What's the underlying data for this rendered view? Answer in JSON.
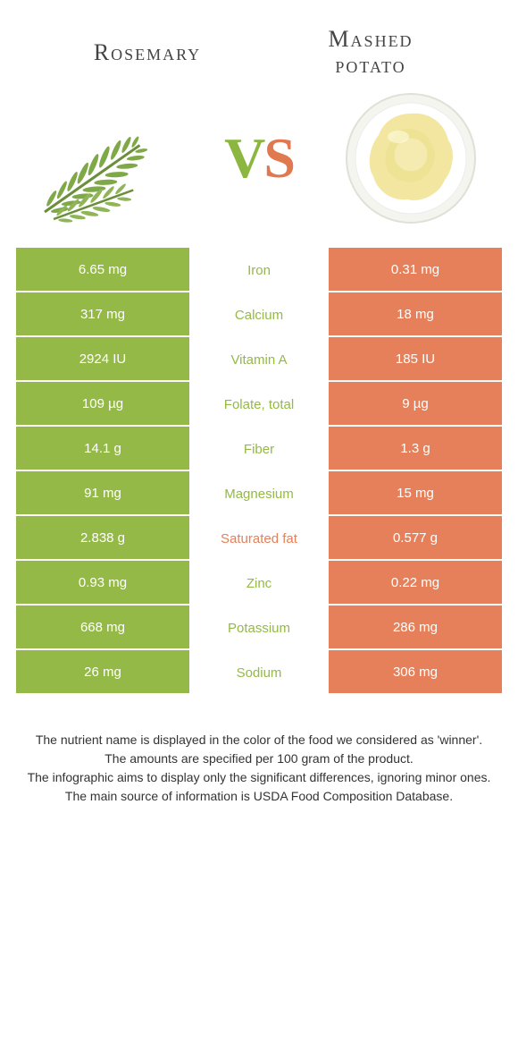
{
  "header": {
    "left_title": "Rosemary",
    "right_title_line1": "Mashed",
    "right_title_line2": "potato",
    "vs_v": "V",
    "vs_s": "S"
  },
  "colors": {
    "left": "#94b947",
    "right": "#e5805a",
    "background": "#ffffff",
    "text_white": "#ffffff"
  },
  "table": {
    "rows": [
      {
        "left": "6.65 mg",
        "label": "Iron",
        "right": "0.31 mg",
        "label_color": "#94b947"
      },
      {
        "left": "317 mg",
        "label": "Calcium",
        "right": "18 mg",
        "label_color": "#94b947"
      },
      {
        "left": "2924 IU",
        "label": "Vitamin A",
        "right": "185 IU",
        "label_color": "#94b947"
      },
      {
        "left": "109 µg",
        "label": "Folate, total",
        "right": "9 µg",
        "label_color": "#94b947"
      },
      {
        "left": "14.1 g",
        "label": "Fiber",
        "right": "1.3 g",
        "label_color": "#94b947"
      },
      {
        "left": "91 mg",
        "label": "Magnesium",
        "right": "15 mg",
        "label_color": "#94b947"
      },
      {
        "left": "2.838 g",
        "label": "Saturated fat",
        "right": "0.577 g",
        "label_color": "#e5805a"
      },
      {
        "left": "0.93 mg",
        "label": "Zinc",
        "right": "0.22 mg",
        "label_color": "#94b947"
      },
      {
        "left": "668 mg",
        "label": "Potassium",
        "right": "286 mg",
        "label_color": "#94b947"
      },
      {
        "left": "26 mg",
        "label": "Sodium",
        "right": "306 mg",
        "label_color": "#94b947"
      }
    ]
  },
  "footer": {
    "line1": "The nutrient name is displayed in the color of the food we considered as 'winner'.",
    "line2": "The amounts are specified per 100 gram of the product.",
    "line3": "The infographic aims to display only the significant differences, ignoring minor ones.",
    "line4": "The main source of information is USDA Food Composition Database."
  }
}
